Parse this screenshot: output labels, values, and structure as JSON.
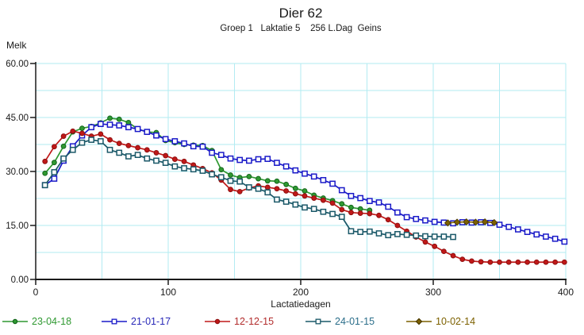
{
  "header": {
    "title": "Dier 62",
    "subtitle": "Groep 1   Laktatie 5    256 L.Dag  Geins"
  },
  "chart_data": {
    "type": "line",
    "title": "Dier 62",
    "subtitle": "Groep 1   Laktatie 5    256 L.Dag  Geins",
    "xlabel": "Lactatiedagen",
    "ylabel": "Melk",
    "xlim": [
      0,
      400
    ],
    "ylim": [
      0,
      60
    ],
    "xticks": [
      0,
      100,
      200,
      300,
      400
    ],
    "xtick_labels": [
      "0",
      "100",
      "200",
      "300",
      "400"
    ],
    "yticks": [
      0,
      15,
      30,
      45,
      60
    ],
    "ytick_labels": [
      "0.00",
      "15.00",
      "30.00",
      "45.00",
      "60.00"
    ],
    "grid": {
      "x_interval": 50,
      "y_interval": 7.5,
      "color": "#B2EBF2",
      "visible": true
    },
    "legend_position": "bottom",
    "axis_color": "#1a1a1a",
    "series": [
      {
        "name": "23-04-18",
        "color": "#2F9931",
        "legend_color": "#2F9931",
        "marker": "circle",
        "marker_fill": "#2F9931",
        "marker_stroke": "#14661C",
        "days": [
          7,
          14,
          21,
          28,
          35,
          42,
          49,
          56,
          63,
          70,
          77,
          84,
          91,
          98,
          105,
          112,
          119,
          126,
          133,
          140,
          147,
          154,
          161,
          168,
          175,
          182,
          189,
          196,
          203,
          210,
          217,
          224,
          231,
          238,
          245,
          252
        ],
        "values": [
          29.5,
          32.5,
          37,
          41,
          42,
          42.5,
          43.5,
          44.8,
          44.5,
          43.6,
          41.8,
          41,
          40.8,
          38.6,
          38,
          37.5,
          37.3,
          37.2,
          35.8,
          30.5,
          29,
          28.3,
          28.6,
          28,
          27.4,
          27.3,
          26.4,
          25.3,
          24.6,
          23.4,
          22.6,
          21.9,
          21,
          20,
          19.6,
          19.2
        ]
      },
      {
        "name": "21-01-17",
        "color": "#1A1AC8",
        "legend_color": "#2929B8",
        "marker": "square",
        "marker_fill": "#FFFFFF",
        "marker_stroke": "#1A1AC8",
        "days": [
          7,
          14,
          21,
          28,
          35,
          42,
          49,
          56,
          63,
          70,
          77,
          84,
          91,
          98,
          105,
          112,
          119,
          126,
          133,
          140,
          147,
          154,
          161,
          168,
          175,
          182,
          189,
          196,
          203,
          210,
          217,
          224,
          231,
          238,
          245,
          252,
          259,
          266,
          273,
          280,
          287,
          294,
          301,
          308,
          315,
          322,
          329,
          336,
          343,
          350,
          357,
          364,
          371,
          378,
          385,
          392,
          399
        ],
        "values": [
          26.2,
          28,
          33,
          37,
          40,
          42.3,
          43.2,
          43,
          42.8,
          42.3,
          41.8,
          41,
          40,
          39,
          38.4,
          37.8,
          37,
          36.9,
          35.2,
          34.6,
          33.6,
          33.2,
          33,
          33.4,
          33.5,
          32.4,
          31.4,
          30.3,
          29.4,
          28.6,
          27.6,
          26.6,
          24.8,
          23.2,
          22.6,
          21.8,
          21.4,
          20.2,
          18.6,
          17.3,
          16.8,
          16.4,
          16,
          15.8,
          15.6,
          15.9,
          15.8,
          15.9,
          15.7,
          15.2,
          14.6,
          13.9,
          13.2,
          12.5,
          11.9,
          11.3,
          10.5
        ]
      },
      {
        "name": "12-12-15",
        "color": "#C01818",
        "legend_color": "#B22C2C",
        "marker": "circle",
        "marker_fill": "#C01818",
        "marker_stroke": "#8F1010",
        "days": [
          7,
          14,
          21,
          28,
          35,
          42,
          49,
          56,
          63,
          70,
          77,
          84,
          91,
          98,
          105,
          112,
          119,
          126,
          133,
          140,
          147,
          154,
          161,
          168,
          175,
          182,
          189,
          196,
          203,
          210,
          217,
          224,
          231,
          238,
          245,
          252,
          259,
          266,
          273,
          280,
          287,
          294,
          301,
          308,
          315,
          322,
          329,
          336,
          343,
          350,
          357,
          364,
          371,
          378,
          385,
          392,
          399
        ],
        "values": [
          32.8,
          36.9,
          39.8,
          41.2,
          40.6,
          39.8,
          40.4,
          38.8,
          37.8,
          37.2,
          36.6,
          36,
          35.2,
          34.4,
          33.4,
          32.8,
          31.8,
          30.8,
          29.6,
          27.6,
          25,
          24.4,
          25.4,
          26,
          25.6,
          25.2,
          24.6,
          23.8,
          23.2,
          22.6,
          22,
          21.2,
          19.4,
          18.6,
          18.4,
          18.3,
          17.8,
          16.6,
          15,
          13.4,
          11.8,
          10.4,
          9.2,
          7.8,
          6.6,
          5.6,
          5.1,
          4.9,
          4.8,
          4.8,
          4.8,
          4.8,
          4.8,
          4.8,
          4.8,
          4.8,
          4.8
        ]
      },
      {
        "name": "24-01-15",
        "color": "#1A5868",
        "legend_color": "#2B6E8A",
        "marker": "square",
        "marker_fill": "#FFFFFF",
        "marker_stroke": "#1A5868",
        "days": [
          7,
          14,
          21,
          28,
          35,
          42,
          49,
          56,
          63,
          70,
          77,
          84,
          91,
          98,
          105,
          112,
          119,
          126,
          133,
          140,
          147,
          154,
          161,
          168,
          175,
          182,
          189,
          196,
          203,
          210,
          217,
          224,
          231,
          238,
          245,
          252,
          259,
          266,
          273,
          280,
          287,
          294,
          301,
          308,
          315
        ],
        "values": [
          26.2,
          29.8,
          33.6,
          36,
          38,
          38.8,
          38.4,
          36,
          35.2,
          34.2,
          34.6,
          33.6,
          33,
          32.4,
          31.4,
          30.9,
          30.6,
          30.2,
          29.2,
          28.4,
          27.4,
          27.2,
          25.6,
          25.2,
          24.2,
          22.2,
          21.6,
          20.8,
          20,
          19.6,
          18.8,
          18.2,
          17.4,
          13.4,
          13.2,
          13.3,
          12.8,
          12.3,
          12.6,
          12.4,
          12.2,
          12,
          11.9,
          11.9,
          11.8
        ]
      },
      {
        "name": "10-02-14",
        "color": "#7D6100",
        "legend_color": "#7D6100",
        "marker": "diamond",
        "marker_fill": "#7D6100",
        "marker_stroke": "#4F3D00",
        "days": [
          311,
          318,
          325,
          332,
          339,
          346
        ],
        "values": [
          15.7,
          15.9,
          16,
          15.9,
          16,
          15.8
        ]
      }
    ]
  },
  "legend": {
    "items": [
      "23-04-18",
      "21-01-17",
      "12-12-15",
      "24-01-15",
      "10-02-14"
    ]
  }
}
